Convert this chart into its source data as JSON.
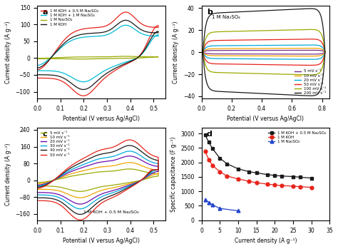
{
  "panel_a": {
    "title": "a",
    "xlabel": "Potential (V versus Ag/AgCl)",
    "ylabel": "Current density (A g⁻¹)",
    "xlim": [
      0.0,
      0.55
    ],
    "ylim": [
      -120,
      155
    ],
    "yticks": [
      -100,
      -50,
      0,
      50,
      100,
      150
    ],
    "xticks": [
      0.0,
      0.1,
      0.2,
      0.3,
      0.4,
      0.5
    ],
    "curves": [
      {
        "label": "1 M KOH + 0.5 M Na₂SO₄",
        "color": "#e8231a",
        "ymax": 130,
        "ymin": -108
      },
      {
        "label": "1 M KOH + 1 M Na₂SO₄",
        "color": "#00bcd4",
        "ymax": 93,
        "ymin": -68
      },
      {
        "label": "1 M Na₂SO₄",
        "color": "#9aaa00",
        "ymax": 5,
        "ymin": -3
      },
      {
        "label": "1 M KOH",
        "color": "#1a1a1a",
        "ymax": 107,
        "ymin": -90
      }
    ]
  },
  "panel_b": {
    "title": "b",
    "annotation": "1 M Na₂SO₄",
    "xlabel": "Potential (V versus Ag/AgCl)",
    "ylabel": "Current density (A g⁻¹)",
    "xlim": [
      0.0,
      0.85
    ],
    "ylim": [
      -42,
      42
    ],
    "yticks": [
      -40,
      -20,
      0,
      20,
      40
    ],
    "xticks": [
      0.0,
      0.2,
      0.4,
      0.6,
      0.8
    ],
    "scales": [
      0.045,
      0.09,
      0.165,
      0.3,
      0.52,
      1.0
    ],
    "colors": [
      "#7b2d8b",
      "#f0a500",
      "#00aadd",
      "#e8231a",
      "#9aaa00",
      "#1a1a1a"
    ],
    "labels": [
      "5 mV s⁻¹",
      "10 mV s⁻¹",
      "20 mV s⁻¹",
      "50 mV s⁻¹",
      "100 mV s⁻¹",
      "200 mV s⁻¹"
    ]
  },
  "panel_c": {
    "title": "c",
    "annotation": "1 M KOH + 0.5 M Na₂SO₄",
    "xlabel": "Potential (V versus Ag/AgCl)",
    "ylabel": "Current density (A g⁻¹)",
    "xlim": [
      0.0,
      0.55
    ],
    "ylim": [
      -190,
      250
    ],
    "yticks": [
      -160,
      -80,
      0,
      80,
      160,
      240
    ],
    "xticks": [
      0.0,
      0.1,
      0.2,
      0.3,
      0.4,
      0.5
    ],
    "scales": [
      0.28,
      0.44,
      0.6,
      0.72,
      0.86,
      1.0
    ],
    "colors": [
      "#9aaa00",
      "#f0a500",
      "#6a0dad",
      "#00aadd",
      "#1a1a1a",
      "#e8231a"
    ],
    "labels": [
      "5 mV s⁻¹",
      "10 mV s⁻¹",
      "20 mV s⁻¹",
      "30 mV s⁻¹",
      "40 mV s⁻¹",
      "50 mV s⁻¹"
    ]
  },
  "panel_d": {
    "title": "d",
    "xlabel": "Current density (A g⁻¹)",
    "ylabel": "Specific capacitance (F g⁻¹)",
    "xlim": [
      0,
      35
    ],
    "ylim": [
      0,
      3200
    ],
    "yticks": [
      0,
      500,
      1000,
      1500,
      2000,
      2500,
      3000
    ],
    "xticks": [
      0,
      5,
      10,
      15,
      20,
      25,
      30,
      35
    ],
    "series": [
      {
        "label": "1 M KOH + 0.5 M Na₂SO₄",
        "color": "#1a1a1a",
        "marker": "s",
        "x": [
          1,
          2,
          3,
          5,
          7,
          10,
          13,
          15,
          18,
          20,
          22,
          25,
          27,
          30
        ],
        "y": [
          2950,
          2700,
          2480,
          2150,
          1950,
          1780,
          1680,
          1640,
          1580,
          1550,
          1530,
          1510,
          1490,
          1460
        ]
      },
      {
        "label": "1 M KOH",
        "color": "#e8231a",
        "marker": "o",
        "x": [
          1,
          2,
          3,
          5,
          7,
          10,
          13,
          15,
          18,
          20,
          22,
          25,
          27,
          30
        ],
        "y": [
          2380,
          2100,
          1900,
          1680,
          1530,
          1430,
          1350,
          1300,
          1250,
          1220,
          1200,
          1180,
          1160,
          1140
        ]
      },
      {
        "label": "1 M Na₂SO₄",
        "color": "#2244cc",
        "marker": "^",
        "x": [
          1,
          2,
          3,
          5,
          10
        ],
        "y": [
          720,
          620,
          540,
          410,
          330
        ]
      }
    ]
  }
}
